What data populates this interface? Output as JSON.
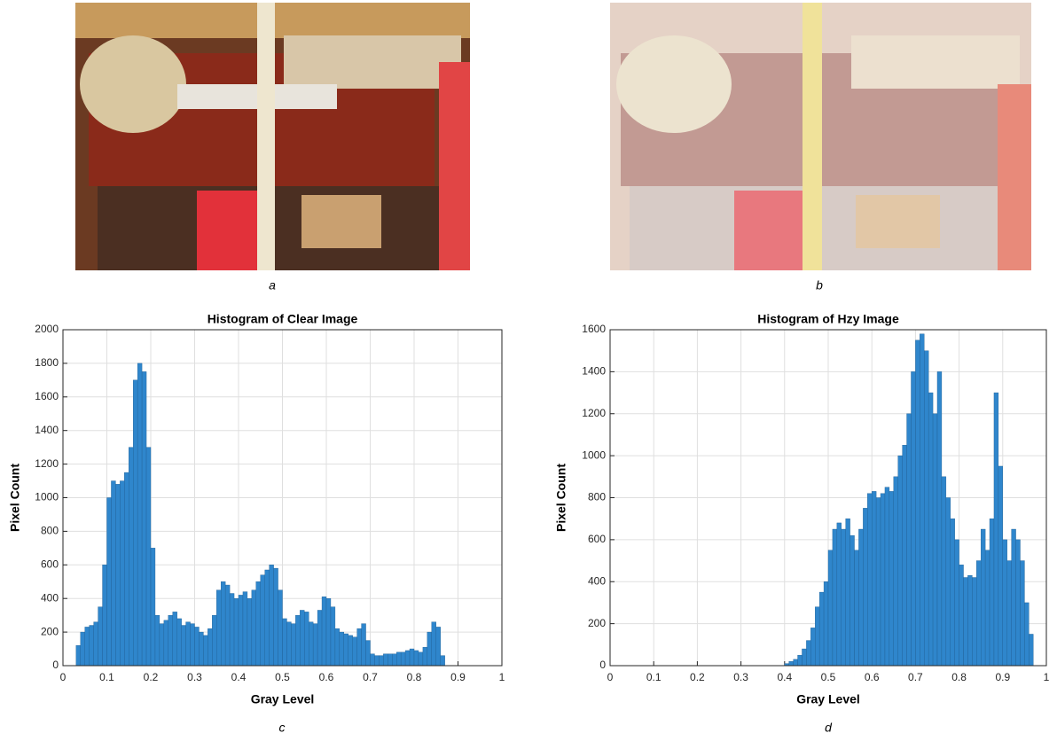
{
  "figure": {
    "captions": [
      "a",
      "b",
      "c",
      "d"
    ]
  },
  "chart_data": [
    {
      "type": "histogram",
      "title": "Histogram of Clear Image",
      "x_label": "Gray Level",
      "y_label": "Pixel Count",
      "color": "#2f86cc",
      "grid": true,
      "bins": [
        0.03,
        0.04,
        0.05,
        0.06,
        0.07,
        0.08,
        0.09,
        0.1,
        0.11,
        0.12,
        0.13,
        0.14,
        0.15,
        0.16,
        0.17,
        0.18,
        0.19,
        0.2,
        0.21,
        0.22,
        0.23,
        0.24,
        0.25,
        0.26,
        0.27,
        0.28,
        0.29,
        0.3,
        0.31,
        0.32,
        0.33,
        0.34,
        0.35,
        0.36,
        0.37,
        0.38,
        0.39,
        0.4,
        0.41,
        0.42,
        0.43,
        0.44,
        0.45,
        0.46,
        0.47,
        0.48,
        0.49,
        0.5,
        0.51,
        0.52,
        0.53,
        0.54,
        0.55,
        0.56,
        0.57,
        0.58,
        0.59,
        0.6,
        0.61,
        0.62,
        0.63,
        0.64,
        0.65,
        0.66,
        0.67,
        0.68,
        0.69,
        0.7,
        0.71,
        0.72,
        0.73,
        0.74,
        0.75,
        0.76,
        0.77,
        0.78,
        0.79,
        0.8,
        0.81,
        0.82,
        0.83,
        0.84,
        0.85,
        0.86,
        0.87
      ],
      "values": [
        120,
        200,
        230,
        240,
        260,
        350,
        600,
        1000,
        1100,
        1080,
        1100,
        1150,
        1300,
        1700,
        1800,
        1750,
        1300,
        700,
        300,
        250,
        270,
        300,
        320,
        280,
        240,
        260,
        250,
        230,
        200,
        180,
        220,
        300,
        450,
        500,
        480,
        430,
        400,
        420,
        440,
        400,
        450,
        500,
        540,
        570,
        600,
        580,
        450,
        280,
        260,
        250,
        300,
        330,
        320,
        260,
        250,
        330,
        410,
        400,
        350,
        220,
        200,
        190,
        180,
        170,
        220,
        250,
        150,
        70,
        60,
        60,
        70,
        70,
        70,
        80,
        80,
        90,
        100,
        90,
        80,
        110,
        200,
        260,
        230,
        60
      ],
      "xlim": [
        0,
        1
      ],
      "xticks": [
        0,
        0.1,
        0.2,
        0.3,
        0.4,
        0.5,
        0.6,
        0.7,
        0.8,
        0.9,
        1
      ],
      "ylim": [
        0,
        2000
      ],
      "yticks": [
        0,
        200,
        400,
        600,
        800,
        1000,
        1200,
        1400,
        1600,
        1800,
        2000
      ]
    },
    {
      "type": "histogram",
      "title": "Histogram of Hzy Image",
      "x_label": "Gray Level",
      "y_label": "Pixel Count",
      "color": "#2f86cc",
      "grid": true,
      "bins": [
        0.4,
        0.41,
        0.42,
        0.43,
        0.44,
        0.45,
        0.46,
        0.47,
        0.48,
        0.49,
        0.5,
        0.51,
        0.52,
        0.53,
        0.54,
        0.55,
        0.56,
        0.57,
        0.58,
        0.59,
        0.6,
        0.61,
        0.62,
        0.63,
        0.64,
        0.65,
        0.66,
        0.67,
        0.68,
        0.69,
        0.7,
        0.71,
        0.72,
        0.73,
        0.74,
        0.75,
        0.76,
        0.77,
        0.78,
        0.79,
        0.8,
        0.81,
        0.82,
        0.83,
        0.84,
        0.85,
        0.86,
        0.87,
        0.88,
        0.89,
        0.9,
        0.91,
        0.92,
        0.93,
        0.94,
        0.95,
        0.96,
        0.97
      ],
      "values": [
        10,
        20,
        30,
        50,
        80,
        120,
        180,
        280,
        350,
        400,
        550,
        650,
        680,
        650,
        700,
        620,
        550,
        650,
        750,
        820,
        830,
        800,
        820,
        850,
        830,
        900,
        1000,
        1050,
        1200,
        1400,
        1550,
        1580,
        1500,
        1300,
        1200,
        1400,
        900,
        800,
        700,
        600,
        480,
        420,
        430,
        420,
        500,
        650,
        550,
        700,
        1300,
        950,
        600,
        500,
        650,
        600,
        500,
        300,
        150
      ],
      "xlim": [
        0,
        1
      ],
      "xticks": [
        0,
        0.1,
        0.2,
        0.3,
        0.4,
        0.5,
        0.6,
        0.7,
        0.8,
        0.9,
        1
      ],
      "ylim": [
        0,
        1600
      ],
      "yticks": [
        0,
        200,
        400,
        600,
        800,
        1000,
        1200,
        1400,
        1600
      ]
    }
  ]
}
